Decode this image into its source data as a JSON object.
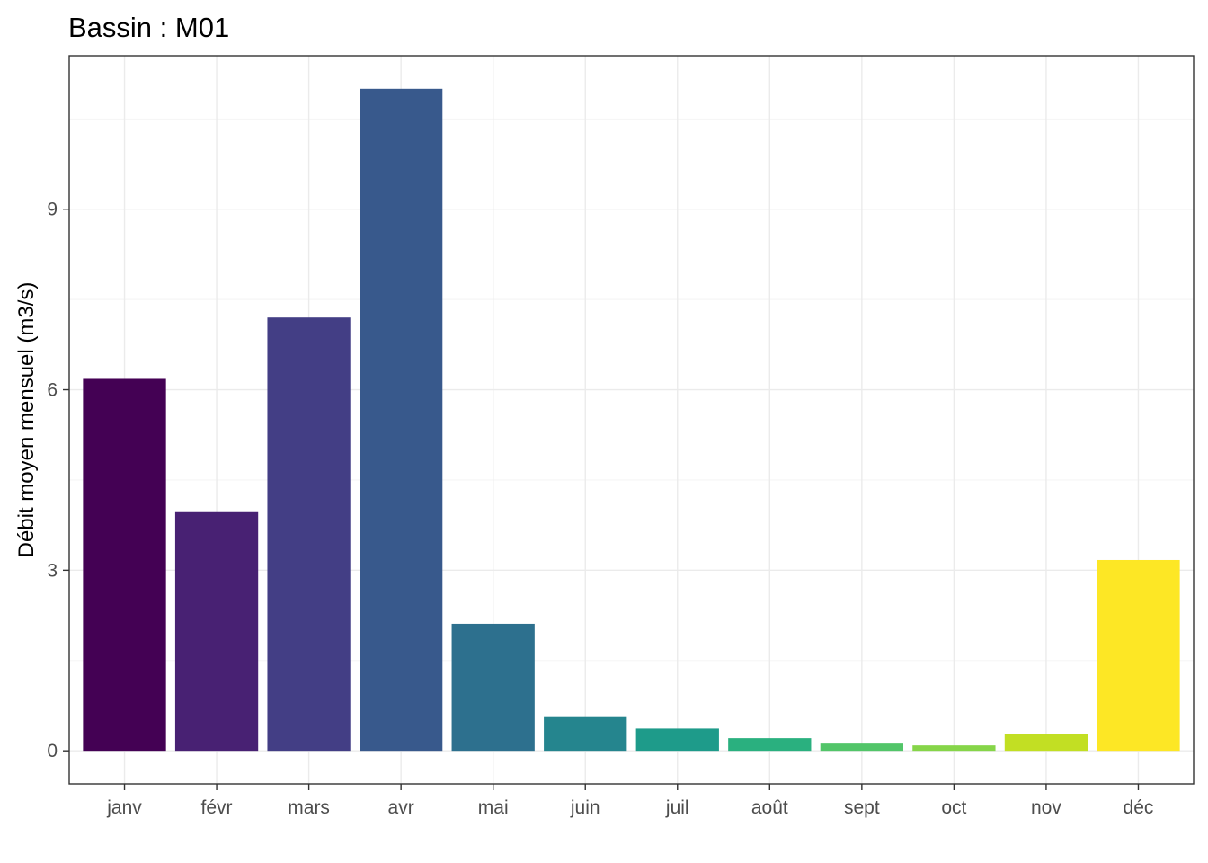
{
  "chart_data": {
    "type": "bar",
    "title": "Bassin : M01",
    "xlabel": "",
    "ylabel": "Débit moyen mensuel (m3/s)",
    "categories": [
      "janv",
      "févr",
      "mars",
      "avr",
      "mai",
      "juin",
      "juil",
      "août",
      "sept",
      "oct",
      "nov",
      "déc"
    ],
    "values": [
      6.18,
      3.98,
      7.2,
      11.0,
      2.11,
      0.56,
      0.37,
      0.21,
      0.12,
      0.09,
      0.28,
      3.17
    ],
    "colors": [
      "#440154",
      "#482173",
      "#433e85",
      "#38598c",
      "#2d708e",
      "#25858e",
      "#1e9b8a",
      "#2ab07f",
      "#52c569",
      "#86d549",
      "#c2df23",
      "#fde725"
    ],
    "yticks": [
      0,
      3,
      6,
      9
    ],
    "ylim": [
      -0.55,
      11.55
    ],
    "grid": true,
    "legend": "none"
  }
}
